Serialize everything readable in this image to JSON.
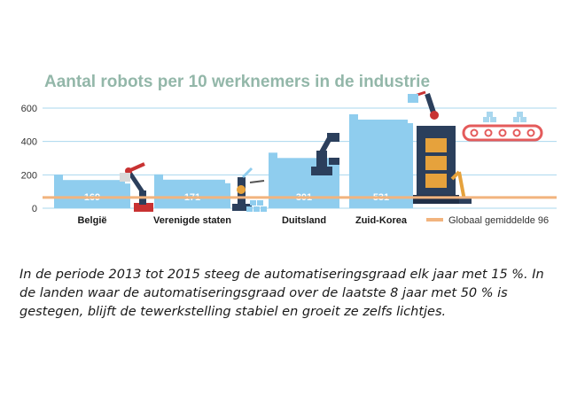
{
  "chart_data": {
    "type": "bar",
    "title": "Aantal robots per 10 werknemers in de industrie",
    "categories": [
      "België",
      "Verenigde staten",
      "Duitsland",
      "Zuid-Korea"
    ],
    "values": [
      169,
      171,
      301,
      531
    ],
    "value_labels": [
      "169",
      "171",
      "301",
      "531"
    ],
    "yticks": [
      0,
      200,
      400,
      600
    ],
    "ylim": [
      0,
      650
    ],
    "grid": true,
    "reference_line": {
      "label": "Globaal gemiddelde 96",
      "value": 96
    },
    "colors": {
      "bar": "#8fcdee",
      "reference": "#f2b47e",
      "grid": "#a9d7ee",
      "title": "#93b7a9"
    }
  },
  "caption": "In de periode 2013 tot 2015 steeg de automatiseringsgraad elk jaar met 15 %. In de landen waar de automatiseringsgraad over de laatste 8 jaar met 50 % is gestegen, blijft de tewerkstelling stabiel en groeit ze zelfs lichtjes.",
  "illustrations": [
    "robot-arm-icon",
    "robot-arm-icon",
    "robot-arm-icon",
    "robot-arm-icon",
    "robot-arm-icon",
    "conveyor-belt-icon",
    "stacked-boxes-icon"
  ]
}
